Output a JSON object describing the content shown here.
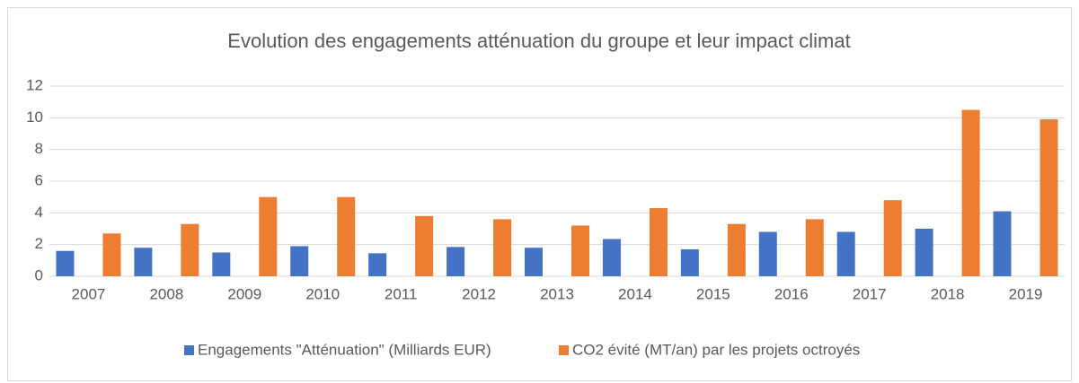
{
  "chart_data": {
    "type": "bar",
    "title": "Evolution des engagements atténuation du groupe et leur impact climat",
    "categories": [
      "2007",
      "2008",
      "2009",
      "2010",
      "2011",
      "2012",
      "2013",
      "2014",
      "2015",
      "2016",
      "2017",
      "2018",
      "2019"
    ],
    "series": [
      {
        "name": "Engagements \"Atténuation\" (Milliards EUR)",
        "color": "#4472c4",
        "values": [
          1.6,
          1.8,
          1.5,
          1.9,
          1.45,
          1.85,
          1.8,
          2.35,
          1.7,
          2.8,
          2.8,
          3.0,
          4.1
        ]
      },
      {
        "name": "CO2 évité (MT/an) par les projets octroyés",
        "color": "#ed7d31",
        "values": [
          2.7,
          3.3,
          5.0,
          5.0,
          3.8,
          3.6,
          3.2,
          4.3,
          3.3,
          3.6,
          4.8,
          10.5,
          9.9
        ]
      }
    ],
    "ylim": [
      0,
      12
    ],
    "yticks": [
      0,
      2,
      4,
      6,
      8,
      10,
      12
    ],
    "grid": true,
    "legend": "bottom"
  }
}
